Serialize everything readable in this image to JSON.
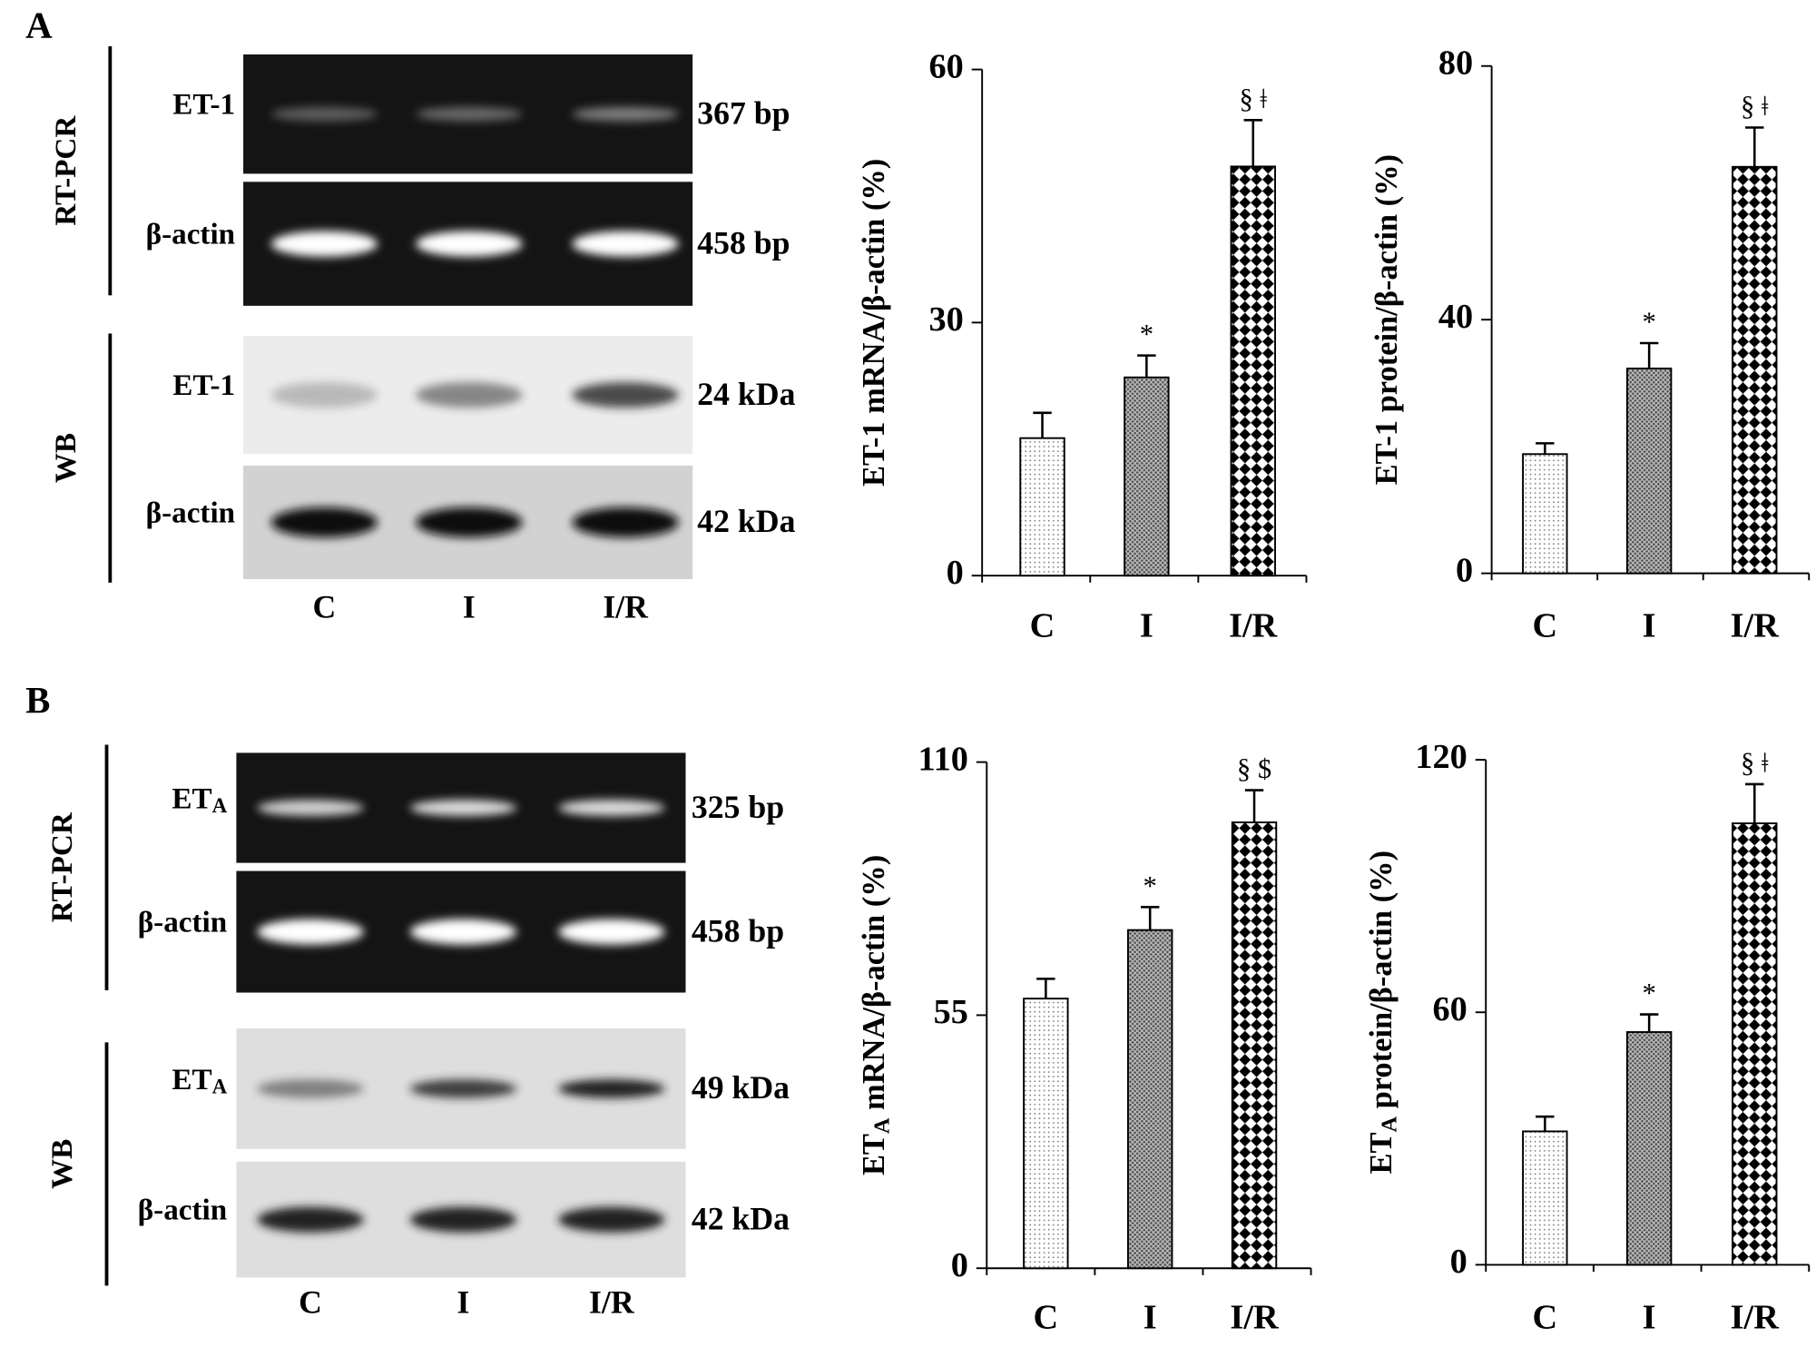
{
  "blots": [
    {
      "panel": "A",
      "lanes": [
        "C",
        "I",
        "I/R"
      ],
      "groups": [
        {
          "name": "RT-PCR",
          "rows": [
            {
              "label": "ET-1",
              "size": "367 bp"
            },
            {
              "label": "β-actin",
              "size": "458 bp"
            }
          ]
        },
        {
          "name": "WB",
          "rows": [
            {
              "label": "ET-1",
              "size": "24 kDa"
            },
            {
              "label": "β-actin",
              "size": "42 kDa"
            }
          ]
        }
      ]
    },
    {
      "panel": "B",
      "lanes": [
        "C",
        "I",
        "I/R"
      ],
      "groups": [
        {
          "name": "RT-PCR",
          "rows": [
            {
              "label": {
                "text": "ET",
                "subscript": "A"
              },
              "size": "325 bp"
            },
            {
              "label": "β-actin",
              "size": "458 bp"
            }
          ]
        },
        {
          "name": "WB",
          "rows": [
            {
              "label": {
                "text": "ET",
                "subscript": "A"
              },
              "size": "49 kDa"
            },
            {
              "label": "β-actin",
              "size": "42 kDa"
            }
          ]
        }
      ]
    }
  ],
  "chart_data": [
    {
      "type": "bar",
      "ylabel": "ET-1 mRNA/β-actin (%)",
      "categories": [
        "C",
        "I",
        "I/R"
      ],
      "values": [
        16.3,
        23.5,
        48.5
      ],
      "errors": [
        3,
        2.6,
        5.5
      ],
      "annotations": [
        null,
        "*",
        "§ ǂ"
      ],
      "ylim": [
        0,
        60
      ],
      "yticks": [
        0,
        30,
        60
      ]
    },
    {
      "type": "bar",
      "ylabel": "ET-1 protein/β-actin (%)",
      "categories": [
        "C",
        "I",
        "I/R"
      ],
      "values": [
        18.8,
        32.3,
        64.1
      ],
      "errors": [
        1.7,
        4,
        6.2
      ],
      "annotations": [
        null,
        "*",
        "§ ǂ"
      ],
      "ylim": [
        0,
        80
      ],
      "yticks": [
        0,
        40,
        80
      ]
    },
    {
      "type": "bar",
      "ylabel": {
        "text": "ET",
        "subscript": "A",
        "rest": " mRNA/β-actin (%)"
      },
      "categories": [
        "C",
        "I",
        "I/R"
      ],
      "values": [
        58.6,
        73.5,
        96.9
      ],
      "errors": [
        4.3,
        5,
        7
      ],
      "annotations": [
        null,
        "*",
        "§ $"
      ],
      "ylim": [
        0,
        110
      ],
      "yticks": [
        0,
        55,
        110
      ]
    },
    {
      "type": "bar",
      "ylabel": {
        "text": "ET",
        "subscript": "A",
        "rest": " protein/β-actin (%)"
      },
      "categories": [
        "C",
        "I",
        "I/R"
      ],
      "values": [
        31.7,
        55.3,
        104.9
      ],
      "errors": [
        3.5,
        4.2,
        9.3
      ],
      "annotations": [
        null,
        "*",
        "§ ǂ"
      ],
      "ylim": [
        0,
        120
      ],
      "yticks": [
        0,
        60,
        120
      ]
    }
  ]
}
